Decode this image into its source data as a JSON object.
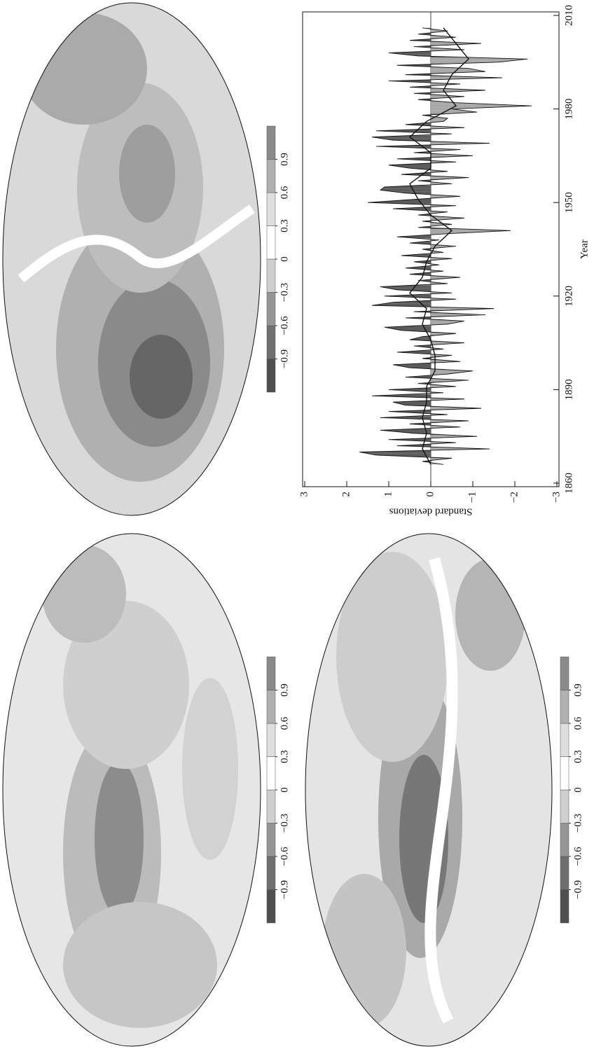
{
  "chart_data": [
    {
      "type": "map",
      "clim": [
        -1.2,
        1.2
      ],
      "colorbar_ticks": [
        {
          "value": -0.9,
          "label": "−0.9"
        },
        {
          "value": -0.6,
          "label": "−0.6"
        },
        {
          "value": -0.3,
          "label": "−0.3"
        },
        0,
        0.3,
        0.6,
        0.9
      ]
    },
    {
      "type": "map",
      "clim": [
        -1.2,
        1.2
      ],
      "colorbar_ticks": [
        {
          "value": -0.9,
          "label": "−0.9"
        },
        {
          "value": -0.6,
          "label": "−0.6"
        },
        {
          "value": -0.3,
          "label": "−0.3"
        },
        0,
        0.3,
        0.6,
        0.9
      ]
    },
    {
      "type": "map",
      "clim": [
        -1.2,
        1.2
      ],
      "colorbar_ticks": [
        {
          "value": -0.9,
          "label": "−0.9"
        },
        {
          "value": -0.6,
          "label": "−0.6"
        },
        {
          "value": -0.3,
          "label": "−0.3"
        },
        0,
        0.3,
        0.6,
        0.9
      ]
    },
    {
      "type": "line",
      "x_label": "Year",
      "y_label": "Standard deviations",
      "xlim": [
        1860,
        2010
      ],
      "xticks": [
        1860,
        1890,
        1920,
        1950,
        1980,
        2010
      ],
      "ylim": [
        -3,
        3
      ],
      "yticks": [
        {
          "value": -3,
          "label": "−3"
        },
        {
          "value": -2,
          "label": "−2"
        },
        {
          "value": -1,
          "label": "−1"
        },
        0,
        1,
        2,
        3
      ],
      "series": [
        {
          "color": "#111111",
          "fill_above": "#5c5c5c",
          "fill_below": "#a8a8a8",
          "x": [
            1866,
            1867,
            1868,
            1869,
            1870,
            1871,
            1872,
            1873,
            1874,
            1875,
            1876,
            1877,
            1878,
            1879,
            1880,
            1881,
            1882,
            1883,
            1884,
            1885,
            1886,
            1887,
            1888,
            1889,
            1890,
            1891,
            1892,
            1893,
            1894,
            1895,
            1896,
            1897,
            1898,
            1899,
            1900,
            1901,
            1902,
            1903,
            1904,
            1905,
            1906,
            1907,
            1908,
            1909,
            1910,
            1911,
            1912,
            1913,
            1914,
            1915,
            1916,
            1917,
            1918,
            1919,
            1920,
            1921,
            1922,
            1923,
            1924,
            1925,
            1926,
            1927,
            1928,
            1929,
            1930,
            1931,
            1932,
            1933,
            1934,
            1935,
            1936,
            1937,
            1938,
            1939,
            1940,
            1941,
            1942,
            1943,
            1944,
            1945,
            1946,
            1947,
            1948,
            1949,
            1950,
            1951,
            1952,
            1953,
            1954,
            1955,
            1956,
            1957,
            1958,
            1959,
            1960,
            1961,
            1962,
            1963,
            1964,
            1965,
            1966,
            1967,
            1968,
            1969,
            1970,
            1971,
            1972,
            1973,
            1974,
            1975,
            1976,
            1977,
            1978,
            1979,
            1980,
            1981,
            1982,
            1983,
            1984,
            1985,
            1986,
            1987,
            1988,
            1989,
            1990,
            1991,
            1992,
            1993,
            1994,
            1995,
            1996,
            1997,
            1998,
            1999,
            2000,
            2001,
            2002,
            2003,
            2004,
            2005,
            2006
          ],
          "values": [
            -0.3,
            0.2,
            -0.5,
            1.3,
            1.7,
            -1.4,
            0.8,
            -0.6,
            1.0,
            -1.1,
            0.4,
            1.2,
            -0.7,
            0.5,
            -0.9,
            1.2,
            -0.4,
            1.0,
            -1.2,
            0.6,
            0.9,
            -0.8,
            1.4,
            -0.3,
            1.0,
            -0.6,
            0.3,
            -0.9,
            0.6,
            -0.4,
            -1.0,
            0.5,
            0.9,
            -0.7,
            0.2,
            -0.5,
            0.8,
            -0.3,
            0.4,
            -0.8,
            0.5,
            0.2,
            -0.6,
            0.7,
            1.1,
            -0.4,
            -0.8,
            0.6,
            -1.3,
            0.4,
            -1.5,
            1.4,
            0.9,
            -0.6,
            1.1,
            -0.5,
            0.8,
            1.2,
            -0.4,
            0.3,
            -0.7,
            0.5,
            -0.3,
            0.6,
            -0.2,
            0.4,
            -0.5,
            0.7,
            -0.3,
            0.2,
            -0.6,
            0.5,
            -0.2,
            0.8,
            -0.4,
            -1.9,
            0.3,
            -0.5,
            0.2,
            -0.8,
            0.3,
            -0.4,
            0.9,
            -0.6,
            1.5,
            0.4,
            -0.7,
            0.6,
            1.2,
            1.1,
            -0.5,
            0.3,
            -0.9,
            0.7,
            -0.4,
            0.5,
            1.0,
            -0.6,
            0.8,
            -1.0,
            0.4,
            -0.7,
            1.3,
            -1.4,
            0.9,
            1.4,
            -0.5,
            1.3,
            -0.8,
            0.6,
            -0.3,
            -0.4,
            0.2,
            -1.1,
            -0.5,
            -2.4,
            -0.6,
            0.3,
            -0.8,
            0.4,
            -1.3,
            0.5,
            -0.7,
            1.0,
            -1.7,
            0.6,
            -1.3,
            -0.9,
            0.8,
            -1.6,
            -2.3,
            0.3,
            1.0,
            -0.8,
            0.4,
            -1.2,
            0.5,
            -0.6,
            0.3,
            -0.4,
            0.2
          ]
        },
        {
          "color": "#111111",
          "x": [
            1866,
            1871,
            1876,
            1881,
            1886,
            1891,
            1896,
            1901,
            1906,
            1911,
            1916,
            1921,
            1926,
            1931,
            1936,
            1941,
            1946,
            1951,
            1956,
            1961,
            1966,
            1971,
            1976,
            1981,
            1986,
            1991,
            1996,
            2001,
            2006
          ],
          "values": [
            0,
            0.2,
            0.1,
            0.2,
            0.1,
            0.1,
            -0.1,
            -0.1,
            0,
            0.2,
            0.1,
            0.5,
            0.2,
            0.1,
            -0.1,
            -0.5,
            0,
            0.3,
            0.5,
            0,
            0,
            0.5,
            0.1,
            -0.6,
            -0.3,
            -0.5,
            -0.9,
            -0.6,
            -0.3
          ]
        }
      ]
    }
  ]
}
